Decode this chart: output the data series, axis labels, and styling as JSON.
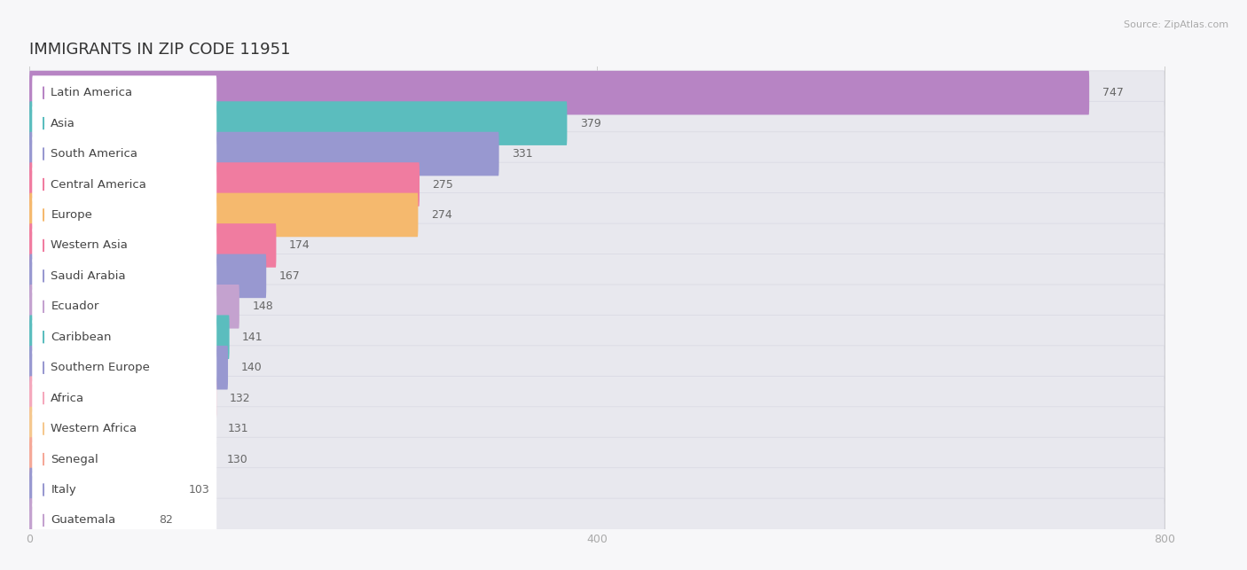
{
  "title": "IMMIGRANTS IN ZIP CODE 11951",
  "source": "Source: ZipAtlas.com",
  "categories": [
    "Latin America",
    "Asia",
    "South America",
    "Central America",
    "Europe",
    "Western Asia",
    "Saudi Arabia",
    "Ecuador",
    "Caribbean",
    "Southern Europe",
    "Africa",
    "Western Africa",
    "Senegal",
    "Italy",
    "Guatemala"
  ],
  "values": [
    747,
    379,
    331,
    275,
    274,
    174,
    167,
    148,
    141,
    140,
    132,
    131,
    130,
    103,
    82
  ],
  "bar_colors": [
    "#b784c4",
    "#5bbdbe",
    "#9898d0",
    "#f07ca0",
    "#f5b96e",
    "#f07ca0",
    "#9898d0",
    "#c4a2cf",
    "#5bbdbe",
    "#9898d0",
    "#f5a8bc",
    "#f5c88e",
    "#f5a898",
    "#9898d0",
    "#c4a2cf"
  ],
  "background_color": "#f7f7f9",
  "bar_background_color": "#e8e8ee",
  "bar_border_color": "#d8d8e2",
  "xlim": [
    0,
    840
  ],
  "xlim_display": 800,
  "xticks": [
    0,
    400,
    800
  ],
  "title_fontsize": 13,
  "label_fontsize": 9.5,
  "value_fontsize": 9
}
